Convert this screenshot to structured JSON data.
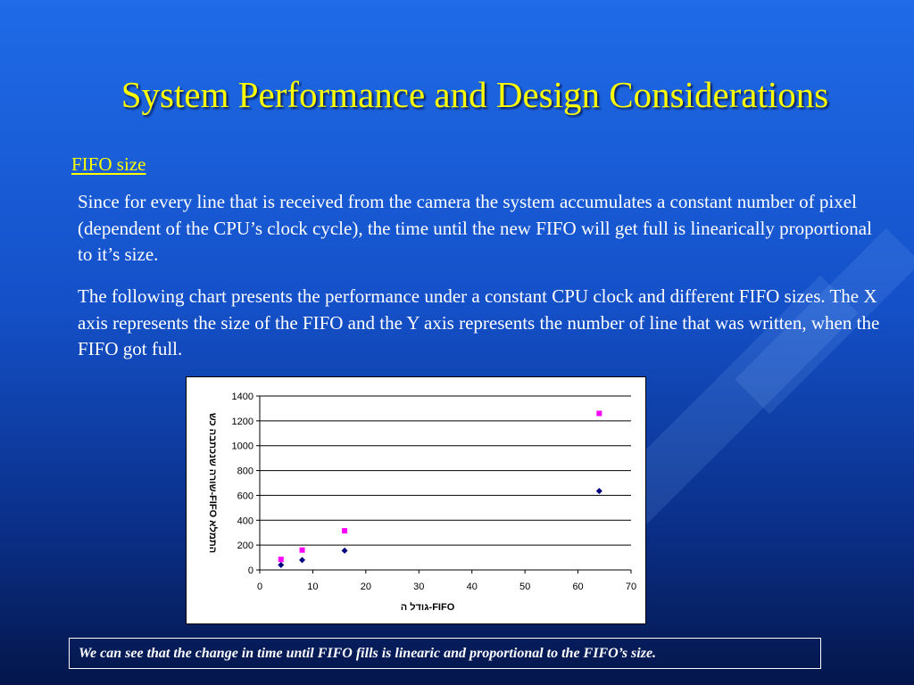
{
  "slide": {
    "title": "System Performance and Design Considerations",
    "heading": "FIFO size",
    "paragraph1": "Since for every line that is received from the camera the system accumulates a constant number of pixel (dependent of the CPU’s clock cycle), the time until the new FIFO will get full is linearically proportional to it’s size.",
    "paragraph2": "The following chart presents the performance under a constant CPU clock and different FIFO sizes. The X axis represents the size of the FIFO and the Y axis represents the number of line that was written, when the FIFO got full.",
    "conclusion": "We can see that the change in time until FIFO fills is linearic and proportional to the FIFO’s size.",
    "colors": {
      "title": "#ffff00",
      "text": "#ffffff",
      "background": "#1450c8"
    }
  },
  "chart_data": {
    "type": "scatter",
    "xlabel": "גודל ה-FIFO",
    "ylabel": "שורה שנכתבה כש-FIFO התמלא",
    "xlim": [
      0,
      70
    ],
    "ylim": [
      0,
      1400
    ],
    "xticks": [
      "0",
      "10",
      "20",
      "30",
      "40",
      "50",
      "60",
      "70"
    ],
    "yticks": [
      "0",
      "200",
      "400",
      "600",
      "800",
      "1000",
      "1200",
      "1400"
    ],
    "grid": "horizontal",
    "series": [
      {
        "color": "#000080",
        "marker": "diamond",
        "x": [
          4,
          8,
          16,
          64
        ],
        "y": [
          40,
          80,
          155,
          635
        ]
      },
      {
        "color": "#ff00ff",
        "marker": "square",
        "x": [
          4,
          8,
          16,
          64
        ],
        "y": [
          85,
          160,
          315,
          1260
        ]
      }
    ]
  }
}
